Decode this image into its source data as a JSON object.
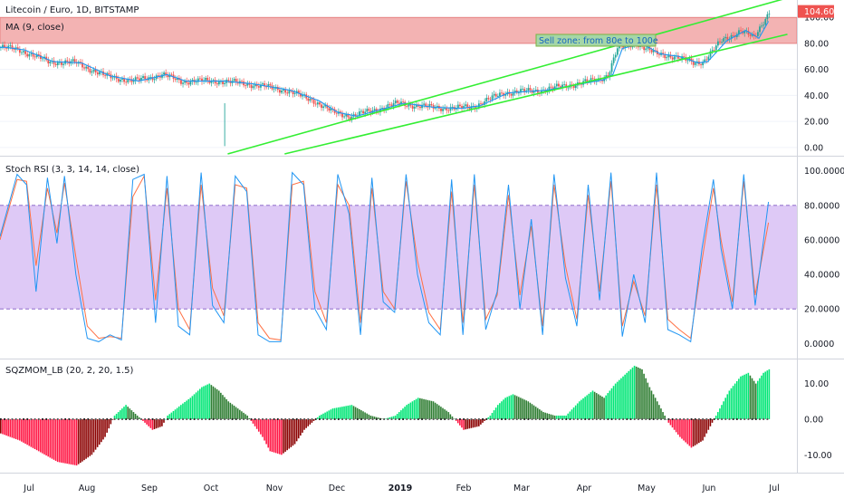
{
  "chart_data": [
    {
      "type": "candlestick",
      "title": "Litecoin / Euro, 1D, BITSTAMP",
      "indicator": "MA (9, close)",
      "ylim": [
        -5,
        112
      ],
      "y_ticks": [
        "0.00",
        "20.00",
        "40.00",
        "60.00",
        "80.00",
        "100.00"
      ],
      "last_price": "104.60",
      "last_price_color": "#ef5350",
      "annotation": "Sell zone: from 80e to 100e",
      "sell_zone": [
        80,
        100
      ],
      "sell_zone_color": "#ef9a9a",
      "channel_color": "#33ee33",
      "ma_color": "#2196f3",
      "up_color": "#26a69a",
      "down_color": "#ef5350",
      "x_labels": [
        "Jul",
        "Aug",
        "Sep",
        "Oct",
        "Nov",
        "Dec",
        "2019",
        "Feb",
        "Mar",
        "Apr",
        "May",
        "Jun",
        "Jul"
      ],
      "close_path": [
        [
          0,
          77
        ],
        [
          10,
          75
        ],
        [
          25,
          66
        ],
        [
          40,
          65
        ],
        [
          55,
          55
        ],
        [
          70,
          51
        ],
        [
          85,
          56
        ],
        [
          95,
          51
        ],
        [
          100,
          51
        ],
        [
          115,
          51
        ],
        [
          130,
          49
        ],
        [
          150,
          44
        ],
        [
          165,
          36
        ],
        [
          175,
          27
        ],
        [
          185,
          24
        ],
        [
          200,
          30
        ],
        [
          210,
          34
        ],
        [
          225,
          31
        ],
        [
          240,
          30
        ],
        [
          250,
          32
        ],
        [
          265,
          42
        ],
        [
          285,
          44
        ],
        [
          300,
          48
        ],
        [
          315,
          52
        ],
        [
          320,
          56
        ],
        [
          325,
          76
        ],
        [
          335,
          80
        ],
        [
          345,
          72
        ],
        [
          355,
          70
        ],
        [
          365,
          65
        ],
        [
          370,
          66
        ],
        [
          380,
          82
        ],
        [
          390,
          90
        ],
        [
          397,
          84
        ],
        [
          402,
          97
        ],
        [
          405,
          104.6
        ]
      ],
      "channel_lines": [
        [
          [
            120,
            -5
          ],
          [
            415,
            115
          ]
        ],
        [
          [
            150,
            -5
          ],
          [
            415,
            87
          ]
        ]
      ]
    },
    {
      "type": "line",
      "title": "Stoch RSI (3, 3, 14, 14, close)",
      "ylim": [
        -3,
        103
      ],
      "y_ticks": [
        "0.0000",
        "20.0000",
        "40.0000",
        "60.0000",
        "80.0000",
        "100.0000"
      ],
      "band": [
        20,
        80
      ],
      "band_color": "#d8bff5",
      "k_color": "#2196f3",
      "d_color": "#ff7043",
      "series": [
        {
          "name": "K",
          "x": [
            0,
            9,
            14,
            19,
            25,
            30,
            34,
            40,
            46,
            52,
            58,
            64,
            70,
            76,
            82,
            88,
            94,
            100,
            106,
            112,
            118,
            124,
            130,
            136,
            142,
            148,
            154,
            160,
            166,
            172,
            178,
            184,
            190,
            196,
            202,
            208,
            214,
            220,
            226,
            232,
            238,
            244,
            250,
            256,
            262,
            268,
            274,
            280,
            286,
            292,
            298,
            304,
            310,
            316,
            322,
            328,
            334,
            340,
            346,
            352,
            358,
            364,
            370,
            376,
            380,
            386,
            392,
            398,
            405
          ],
          "values": [
            62,
            98,
            92,
            30,
            96,
            58,
            97,
            40,
            3,
            1,
            5,
            2,
            95,
            98,
            12,
            97,
            10,
            5,
            99,
            22,
            12,
            97,
            88,
            5,
            1,
            1,
            99,
            92,
            20,
            8,
            98,
            75,
            5,
            96,
            24,
            18,
            98,
            40,
            12,
            5,
            95,
            5,
            98,
            8,
            30,
            92,
            20,
            72,
            5,
            98,
            38,
            10,
            92,
            25,
            99,
            4,
            40,
            12,
            99,
            8,
            5,
            1,
            55,
            95,
            55,
            20,
            98,
            22,
            82
          ]
        },
        {
          "name": "D",
          "x": [
            0,
            9,
            14,
            19,
            25,
            30,
            34,
            40,
            46,
            52,
            58,
            64,
            70,
            76,
            82,
            88,
            94,
            100,
            106,
            112,
            118,
            124,
            130,
            136,
            142,
            148,
            154,
            160,
            166,
            172,
            178,
            184,
            190,
            196,
            202,
            208,
            214,
            220,
            226,
            232,
            238,
            244,
            250,
            256,
            262,
            268,
            274,
            280,
            286,
            292,
            298,
            304,
            310,
            316,
            322,
            328,
            334,
            340,
            346,
            352,
            358,
            364,
            370,
            376,
            380,
            386,
            392,
            398,
            405
          ],
          "values": [
            60,
            95,
            94,
            45,
            90,
            64,
            93,
            50,
            10,
            3,
            4,
            3,
            85,
            97,
            25,
            90,
            20,
            8,
            92,
            32,
            16,
            92,
            90,
            12,
            3,
            2,
            92,
            94,
            30,
            12,
            92,
            80,
            12,
            90,
            30,
            20,
            94,
            48,
            18,
            8,
            88,
            12,
            92,
            14,
            28,
            86,
            28,
            68,
            10,
            92,
            45,
            14,
            86,
            30,
            94,
            10,
            36,
            16,
            92,
            14,
            8,
            3,
            48,
            90,
            60,
            24,
            94,
            28,
            70
          ]
        }
      ]
    },
    {
      "type": "bar",
      "title": "SQZMOM_LB (20, 2, 20, 1.5)",
      "ylim": [
        -14,
        16
      ],
      "y_ticks": [
        "-10.00",
        "0.00",
        "10.00"
      ],
      "colors": {
        "up_strong": "#00e676",
        "up_weak": "#2e7d32",
        "down_strong": "#ff1744",
        "down_weak": "#8b0000"
      },
      "x": [
        0,
        10,
        20,
        30,
        40,
        48,
        55,
        60,
        66,
        72,
        80,
        85,
        88,
        95,
        100,
        106,
        110,
        115,
        120,
        130,
        138,
        142,
        148,
        155,
        160,
        168,
        175,
        185,
        195,
        202,
        208,
        214,
        220,
        228,
        236,
        244,
        252,
        258,
        262,
        266,
        270,
        278,
        286,
        292,
        298,
        305,
        312,
        318,
        324,
        330,
        334,
        338,
        342,
        348,
        352,
        358,
        364,
        370,
        374,
        378,
        384,
        390,
        394,
        398,
        402,
        405
      ],
      "values": [
        -4,
        -6,
        -9,
        -12,
        -13,
        -10,
        -5,
        1,
        4,
        1,
        -3,
        -2,
        1,
        4,
        6,
        9,
        10,
        8,
        5,
        1,
        -5,
        -9,
        -10,
        -7,
        -3,
        1,
        3,
        4,
        1,
        0,
        1,
        4,
        6,
        5,
        2,
        -3,
        -2,
        1,
        4,
        6,
        7,
        5,
        2,
        1,
        1,
        5,
        8,
        6,
        10,
        13,
        15,
        14,
        9,
        3,
        -1,
        -5,
        -8,
        -6,
        -2,
        2,
        8,
        12,
        13,
        10,
        13,
        14
      ]
    }
  ]
}
